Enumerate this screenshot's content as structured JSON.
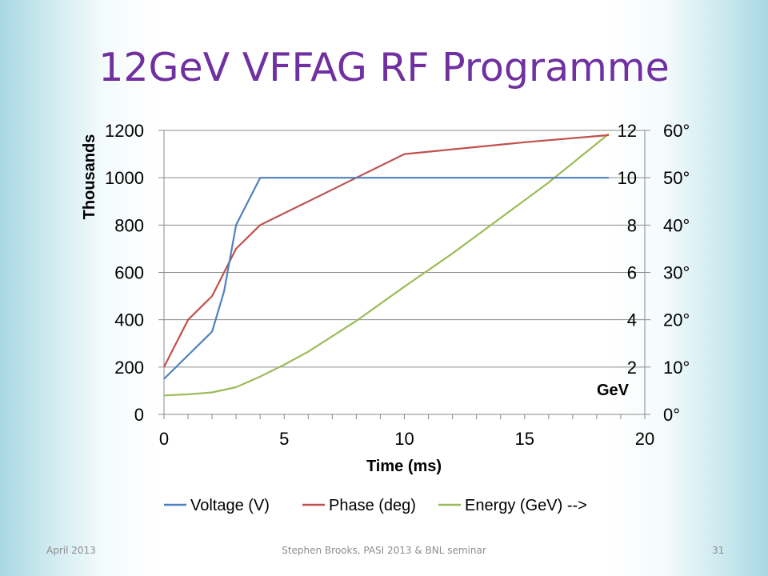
{
  "slide": {
    "title": "12GeV VFFAG RF Programme"
  },
  "footer": {
    "date": "April 2013",
    "center": "Stephen Brooks, PASI 2013 & BNL seminar",
    "page_number": "31"
  },
  "chart_data": {
    "type": "line",
    "xlabel": "Time (ms)",
    "ylabel": "Thousands",
    "xlim": [
      0,
      20
    ],
    "x_ticks": [
      "0",
      "5",
      "10",
      "15",
      "20"
    ],
    "ylim": [
      0,
      1200
    ],
    "y_ticks": [
      "0",
      "200",
      "400",
      "600",
      "800",
      "1000",
      "1200"
    ],
    "y2_ticks": [
      "2",
      "4",
      "6",
      "8",
      "10",
      "12"
    ],
    "y2_unit_label": "GeV",
    "y3_ticks": [
      "0°",
      "10°",
      "20°",
      "30°",
      "40°",
      "50°",
      "60°"
    ],
    "grid": "horizontal",
    "legend_position": "bottom",
    "series": [
      {
        "name": "Voltage (V)",
        "axis": "left",
        "color": "#4f81bd",
        "x": [
          0,
          1,
          2,
          2.5,
          3,
          4,
          5,
          10,
          15,
          18.5
        ],
        "y": [
          150,
          250,
          350,
          520,
          800,
          1000,
          1000,
          1000,
          1000,
          1000
        ]
      },
      {
        "name": "Phase (deg)",
        "axis": "right-phase",
        "color": "#c0504d",
        "x": [
          0,
          1,
          2,
          3,
          4,
          6,
          8,
          10,
          15,
          18.5
        ],
        "y": [
          10,
          20,
          25,
          35,
          40,
          45,
          50,
          55,
          57.5,
          59
        ]
      },
      {
        "name": "Energy (GeV) -->",
        "axis": "right-energy",
        "color": "#9bbb59",
        "x": [
          0,
          1,
          2,
          3,
          4,
          5,
          6,
          8,
          10,
          12,
          14,
          16,
          18.5
        ],
        "y": [
          0.8,
          0.85,
          0.93,
          1.15,
          1.6,
          2.1,
          2.65,
          3.95,
          5.4,
          6.8,
          8.3,
          9.8,
          11.85
        ]
      }
    ]
  }
}
